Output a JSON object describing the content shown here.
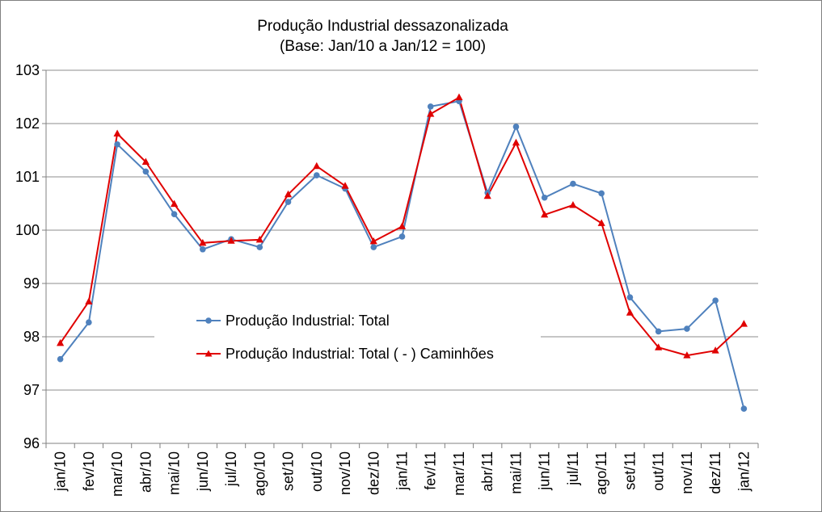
{
  "chart_data": {
    "type": "line",
    "title": "Produção Industrial dessazonalizada",
    "subtitle": "(Base: Jan/10 a Jan/12 = 100)",
    "categories": [
      "jan/10",
      "fev/10",
      "mar/10",
      "abr/10",
      "mai/10",
      "jun/10",
      "jul/10",
      "ago/10",
      "set/10",
      "out/10",
      "nov/10",
      "dez/10",
      "jan/11",
      "fev/11",
      "mar/11",
      "abr/11",
      "mai/11",
      "jun/11",
      "jul/11",
      "ago/11",
      "set/11",
      "out/11",
      "nov/11",
      "dez/11",
      "jan/12"
    ],
    "ylim": [
      96,
      103
    ],
    "yticks": [
      "96",
      "97",
      "98",
      "99",
      "100",
      "101",
      "102",
      "103"
    ],
    "grid": true,
    "series": [
      {
        "name": "Produção Industrial: Total",
        "color": "#4F81BD",
        "marker": "circle",
        "values": [
          97.58,
          98.27,
          101.61,
          101.1,
          100.3,
          99.64,
          99.83,
          99.68,
          100.53,
          101.03,
          100.78,
          99.68,
          99.88,
          102.32,
          102.42,
          100.7,
          101.94,
          100.61,
          100.87,
          100.69,
          98.74,
          98.1,
          98.15,
          98.68,
          96.65
        ]
      },
      {
        "name": "Produção Industrial: Total ( - ) Caminhões",
        "color": "#E00000",
        "marker": "triangle",
        "values": [
          97.88,
          98.66,
          101.81,
          101.28,
          100.49,
          99.76,
          99.8,
          99.82,
          100.67,
          101.2,
          100.83,
          99.79,
          100.07,
          102.18,
          102.49,
          100.64,
          101.64,
          100.29,
          100.47,
          100.13,
          98.45,
          97.8,
          97.65,
          97.74,
          98.24
        ]
      }
    ],
    "legend_position": "center-left"
  }
}
